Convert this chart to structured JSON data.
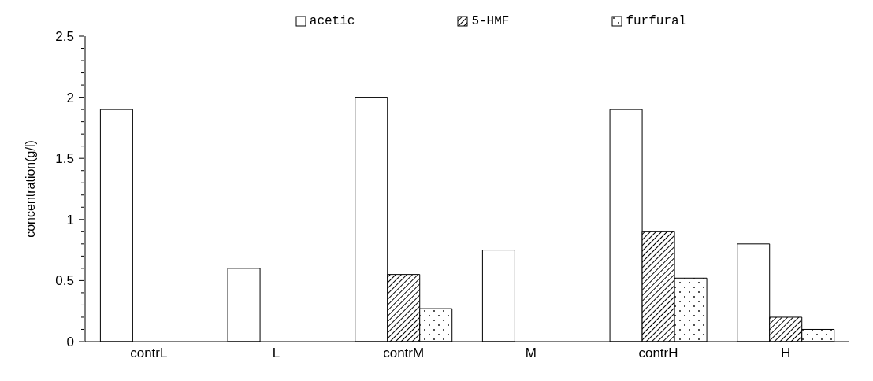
{
  "chart_data": {
    "type": "bar",
    "ylabel": "concentration(g/l)",
    "categories": [
      "contrL",
      "L",
      "contrM",
      "M",
      "contrH",
      "H"
    ],
    "series": [
      {
        "name": "acetic",
        "color": "#ffffff",
        "values": [
          1.9,
          0.6,
          2.0,
          0.75,
          1.9,
          0.8
        ]
      },
      {
        "name": "5-HMF",
        "color": "#000000",
        "values": [
          null,
          null,
          0.55,
          null,
          0.9,
          0.2
        ]
      },
      {
        "name": "furfural",
        "color": "#000000",
        "values": [
          null,
          null,
          0.27,
          null,
          0.52,
          0.1
        ]
      }
    ],
    "ylim": [
      0,
      2.5
    ],
    "yticks": [
      0,
      {
        "value": 0.1,
        "label": null
      },
      {
        "value": 0.2,
        "label": null
      },
      {
        "value": 0.3,
        "label": null
      },
      {
        "value": 0.4,
        "label": null
      },
      0.5,
      {
        "value": 0.6,
        "label": null
      },
      {
        "value": 0.7,
        "label": null
      },
      {
        "value": 0.8,
        "label": null
      },
      {
        "value": 0.9,
        "label": null
      },
      1,
      {
        "value": 1.1,
        "label": null
      },
      {
        "value": 1.2,
        "label": null
      },
      {
        "value": 1.3,
        "label": null
      },
      {
        "value": 1.4,
        "label": null
      },
      1.5,
      {
        "value": 1.6,
        "label": null
      },
      {
        "value": 1.7,
        "label": null
      },
      {
        "value": 1.8,
        "label": null
      },
      {
        "value": 1.9,
        "label": null
      },
      2,
      {
        "value": 2.1,
        "label": null
      },
      {
        "value": 2.2,
        "label": null
      },
      {
        "value": 2.3,
        "label": null
      },
      {
        "value": 2.4,
        "label": null
      },
      2.5
    ],
    "legend": "top"
  }
}
